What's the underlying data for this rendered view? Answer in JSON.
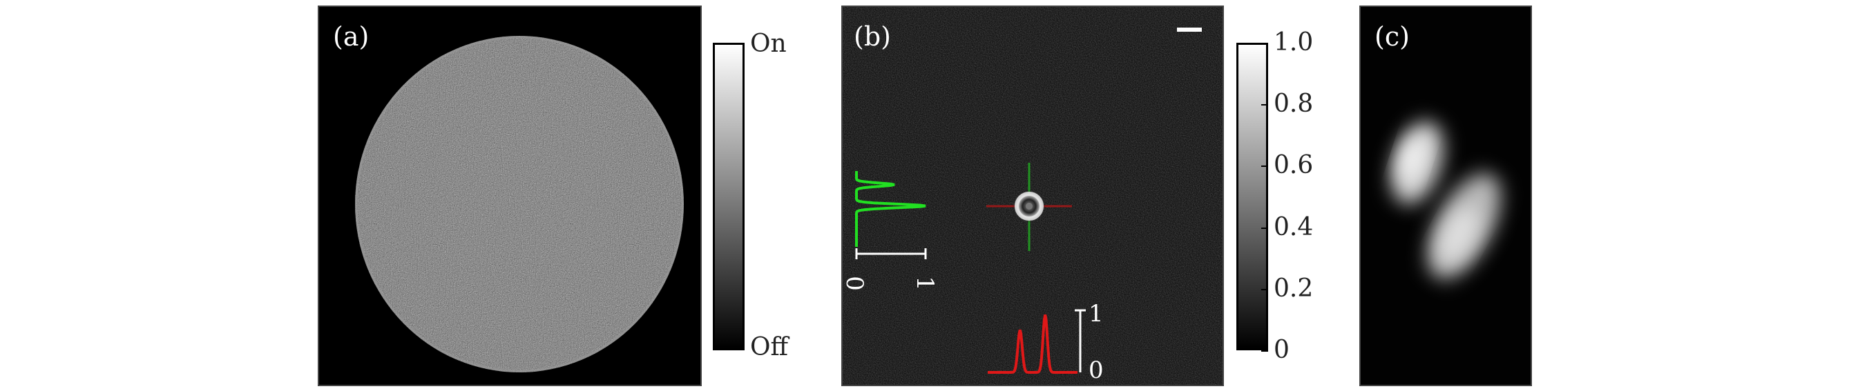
{
  "panels": {
    "a": {
      "label": "(a)"
    },
    "b": {
      "label": "(b)"
    },
    "c": {
      "label": "(c)"
    }
  },
  "colorbar_a": {
    "top_label": "On",
    "bottom_label": "Off"
  },
  "colorbar_b": {
    "ticks": [
      "1.0",
      "0.8",
      "0.6",
      "0.4",
      "0.2",
      "0"
    ]
  },
  "profiles": {
    "vertical": {
      "color": "#22e022",
      "axis_min": "0",
      "axis_max": "1"
    },
    "horizontal": {
      "color": "#e01818",
      "axis_min": "0",
      "axis_max": "1"
    }
  },
  "crosshair": {
    "vertical_color": "#22a022",
    "horizontal_color": "#a01818"
  }
}
